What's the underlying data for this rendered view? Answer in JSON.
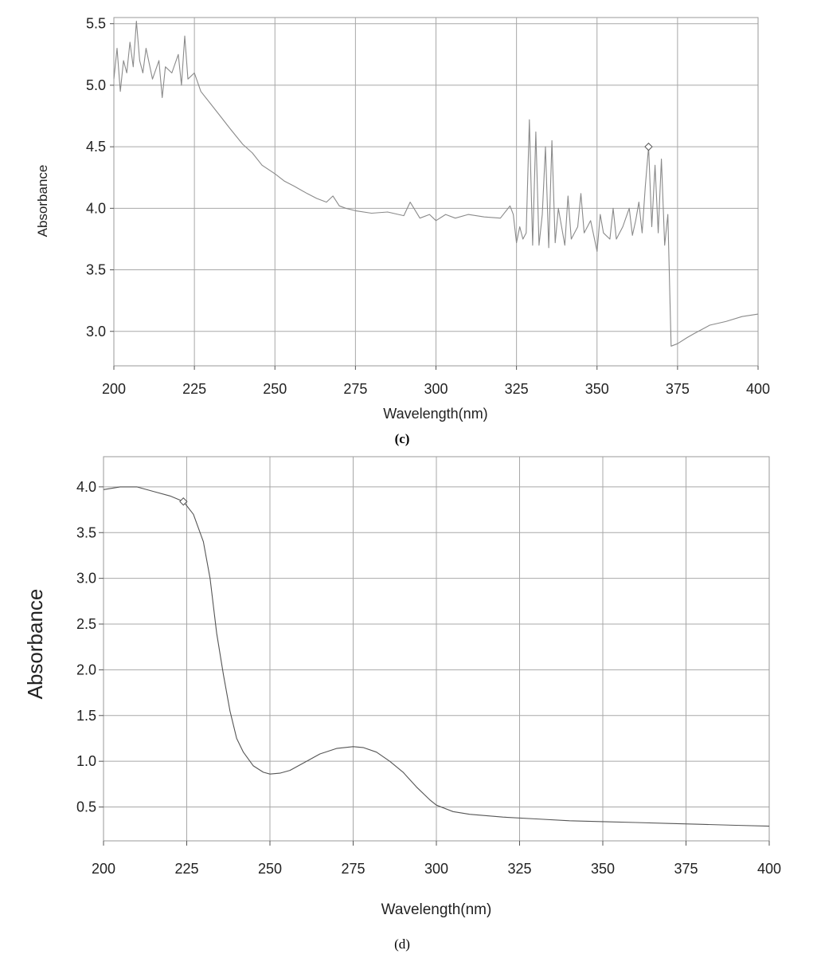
{
  "chart_data": [
    {
      "type": "line",
      "panel_label": "(c)",
      "xlabel": "Wavelength(nm)",
      "ylabel": "Absorbance",
      "xlim": [
        200,
        400
      ],
      "ylim": [
        2.72,
        5.55
      ],
      "x_ticks": [
        200,
        225,
        250,
        275,
        300,
        325,
        350,
        375,
        400
      ],
      "y_ticks": [
        3.0,
        3.5,
        4.0,
        4.5,
        5.0,
        5.5
      ],
      "grid": true,
      "line_color": "#8a8a8a",
      "series": [
        {
          "x": [
            200,
            201,
            202,
            203,
            204,
            205,
            206,
            207,
            208,
            209,
            210,
            212,
            214,
            215,
            216,
            218,
            220,
            221,
            222,
            223,
            225,
            227,
            230,
            233,
            236,
            240,
            243,
            246,
            250,
            253,
            256,
            260,
            263,
            266,
            268,
            270,
            272,
            275,
            280,
            285,
            290,
            292,
            295,
            298,
            300,
            303,
            306,
            310,
            315,
            320,
            323,
            324,
            325,
            326,
            327,
            328,
            329,
            330,
            331,
            332,
            333,
            334,
            335,
            336,
            337,
            338,
            340,
            341,
            342,
            344,
            345,
            346,
            348,
            350,
            351,
            352,
            354,
            355,
            356,
            358,
            360,
            361,
            362,
            363,
            364,
            365,
            366,
            367,
            368,
            369,
            370,
            371,
            372,
            373,
            375,
            378,
            380,
            385,
            390,
            395,
            400
          ],
          "y": [
            5.05,
            5.3,
            4.95,
            5.2,
            5.1,
            5.35,
            5.15,
            5.52,
            5.2,
            5.1,
            5.3,
            5.05,
            5.2,
            4.9,
            5.15,
            5.1,
            5.25,
            5.0,
            5.4,
            5.05,
            5.1,
            4.95,
            4.85,
            4.75,
            4.65,
            4.52,
            4.45,
            4.35,
            4.28,
            4.22,
            4.18,
            4.12,
            4.08,
            4.05,
            4.1,
            4.02,
            4.0,
            3.98,
            3.96,
            3.97,
            3.94,
            4.05,
            3.92,
            3.95,
            3.9,
            3.95,
            3.92,
            3.95,
            3.93,
            3.92,
            4.02,
            3.95,
            3.72,
            3.85,
            3.75,
            3.8,
            4.72,
            3.7,
            4.62,
            3.7,
            3.95,
            4.5,
            3.68,
            4.55,
            3.72,
            4.0,
            3.7,
            4.1,
            3.75,
            3.85,
            4.12,
            3.8,
            3.9,
            3.65,
            3.95,
            3.8,
            3.75,
            4.0,
            3.75,
            3.85,
            4.0,
            3.78,
            3.9,
            4.05,
            3.8,
            4.18,
            4.5,
            3.85,
            4.35,
            3.8,
            4.4,
            3.7,
            3.95,
            2.88,
            2.9,
            2.95,
            2.98,
            3.05,
            3.08,
            3.12,
            3.14
          ]
        }
      ],
      "markers": [
        {
          "x": 366,
          "y": 4.5,
          "shape": "diamond"
        }
      ]
    },
    {
      "type": "line",
      "panel_label": "(d)",
      "xlabel": "Wavelength(nm)",
      "ylabel": "Absorbance",
      "xlim": [
        200,
        400
      ],
      "ylim": [
        0.13,
        4.33
      ],
      "x_ticks": [
        200,
        225,
        250,
        275,
        300,
        325,
        350,
        375,
        400
      ],
      "y_ticks": [
        0.5,
        1.0,
        1.5,
        2.0,
        2.5,
        3.0,
        3.5,
        4.0
      ],
      "grid": true,
      "line_color": "#555555",
      "series": [
        {
          "x": [
            200,
            205,
            210,
            215,
            220,
            224,
            227,
            230,
            232,
            234,
            236,
            238,
            240,
            242,
            245,
            248,
            250,
            253,
            256,
            260,
            265,
            270,
            275,
            278,
            282,
            286,
            290,
            294,
            298,
            300,
            305,
            310,
            320,
            330,
            340,
            350,
            360,
            370,
            380,
            390,
            400
          ],
          "y": [
            3.97,
            4.0,
            4.0,
            3.95,
            3.9,
            3.84,
            3.7,
            3.4,
            3.0,
            2.4,
            1.95,
            1.55,
            1.25,
            1.1,
            0.95,
            0.88,
            0.86,
            0.87,
            0.9,
            0.98,
            1.08,
            1.14,
            1.16,
            1.15,
            1.1,
            1.0,
            0.88,
            0.72,
            0.58,
            0.52,
            0.45,
            0.42,
            0.39,
            0.37,
            0.35,
            0.34,
            0.33,
            0.32,
            0.31,
            0.3,
            0.29
          ]
        }
      ],
      "markers": [
        {
          "x": 224,
          "y": 3.84,
          "shape": "diamond"
        }
      ]
    }
  ]
}
